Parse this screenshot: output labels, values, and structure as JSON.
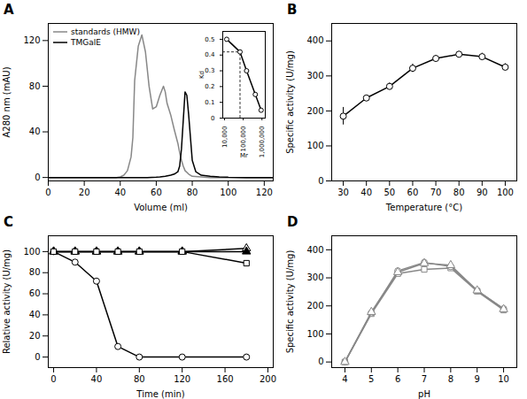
{
  "chart_data": [
    {
      "type": "line",
      "title": "A",
      "xlabel": "Volume (ml)",
      "ylabel": "A280 nm (mAU)",
      "xlim": [
        0,
        125
      ],
      "ylim": [
        -3,
        135
      ],
      "xticks": [
        0,
        20,
        40,
        60,
        80,
        100,
        120
      ],
      "yticks": [
        0,
        40,
        80,
        120
      ],
      "grid": false,
      "legend": "upper left",
      "series": [
        {
          "name": "standards (HMW)",
          "color": "#888888",
          "x": [
            0,
            38,
            40,
            42,
            44,
            46,
            47,
            48,
            50,
            52,
            54,
            56,
            58,
            60,
            62,
            64,
            65,
            66,
            68,
            70,
            72,
            73,
            74,
            75,
            76,
            78,
            80,
            85,
            90,
            100,
            110,
            125
          ],
          "values": [
            0,
            0,
            0.5,
            2,
            6,
            18,
            35,
            85,
            115,
            125,
            110,
            80,
            60,
            62,
            72,
            80,
            75,
            65,
            55,
            42,
            30,
            22,
            15,
            10,
            6,
            3,
            1,
            0.5,
            0,
            0,
            0,
            0
          ]
        },
        {
          "name": "TMGalE",
          "color": "#000000",
          "x": [
            0,
            55,
            60,
            62,
            65,
            68,
            70,
            72,
            73,
            74,
            75,
            76,
            77,
            78,
            79,
            80,
            82,
            85,
            90,
            95,
            100,
            110,
            120,
            125
          ],
          "values": [
            0,
            0,
            0.3,
            0.5,
            1,
            2,
            3,
            5,
            10,
            25,
            50,
            75,
            72,
            55,
            35,
            15,
            5,
            2,
            1,
            0.5,
            0.2,
            0,
            0,
            0
          ]
        }
      ],
      "inset": {
        "type": "line",
        "xlabel": "Mr",
        "ylabel": "Kd",
        "log": "x",
        "xlim": [
          8000,
          1500000
        ],
        "ylim": [
          0,
          0.55
        ],
        "xticks": [
          {
            "value": 10000,
            "label": "10,000"
          },
          {
            "value": 100000,
            "label": "100,000"
          },
          {
            "value": 1000000,
            "label": "1,000,000"
          }
        ],
        "yticks": [
          0,
          0.1,
          0.2,
          0.3,
          0.4,
          0.5
        ],
        "grid": false,
        "x": [
          13000,
          67000,
          150000,
          440000,
          900000
        ],
        "series": [
          {
            "color": "#000000",
            "marker": "open_circle",
            "values": [
              0.5,
              0.42,
              0.3,
              0.15,
              0.05
            ]
          }
        ],
        "crosshair": {
          "x": 67000,
          "y": 0.42
        }
      }
    },
    {
      "type": "line",
      "title": "B",
      "xlabel": "Temperature (°C)",
      "ylabel": "Specific activity (U/mg)",
      "xlim": [
        25,
        105
      ],
      "ylim": [
        0,
        450
      ],
      "xticks": [
        30,
        40,
        50,
        60,
        70,
        80,
        90,
        100
      ],
      "yticks": [
        0,
        100,
        200,
        300,
        400
      ],
      "grid": false,
      "x": [
        30,
        40,
        50,
        60,
        70,
        80,
        90,
        100
      ],
      "series": [
        {
          "color": "#000000",
          "marker": "open_circle",
          "values": [
            185,
            237,
            270,
            322,
            350,
            362,
            355,
            325
          ],
          "errors": [
            25,
            8,
            10,
            12,
            8,
            8,
            10,
            10
          ]
        }
      ]
    },
    {
      "type": "line",
      "title": "C",
      "xlabel": "Time (min)",
      "ylabel": "Relative activity (U/mg)",
      "xlim": [
        -5,
        205
      ],
      "ylim": [
        -10,
        115
      ],
      "xticks": [
        0,
        40,
        80,
        120,
        160,
        200
      ],
      "yticks": [
        0,
        20,
        40,
        60,
        80,
        100
      ],
      "grid": false,
      "x": [
        0,
        20,
        40,
        60,
        80,
        120,
        180
      ],
      "series": [
        {
          "color": "#000000",
          "marker": "open_circle",
          "values": [
            100,
            90,
            72,
            10,
            0,
            0,
            0
          ]
        },
        {
          "color": "#000000",
          "marker": "open_triangle",
          "values": [
            100,
            100,
            100,
            100,
            100,
            100,
            103
          ]
        },
        {
          "color": "#000000",
          "marker": "filled_triangle",
          "values": [
            100,
            100,
            100,
            100,
            100,
            100,
            100
          ]
        },
        {
          "color": "#000000",
          "marker": "open_square",
          "values": [
            100,
            100,
            100,
            100,
            100,
            100,
            89
          ]
        }
      ]
    },
    {
      "type": "line",
      "title": "D",
      "xlabel": "pH",
      "ylabel": "Specific activity (U/mg)",
      "xlim": [
        3.5,
        10.5
      ],
      "ylim": [
        -20,
        450
      ],
      "xticks": [
        4,
        5,
        6,
        7,
        8,
        9,
        10
      ],
      "yticks": [
        0,
        100,
        200,
        300,
        400
      ],
      "grid": false,
      "x": [
        4,
        5,
        6,
        7,
        8,
        9,
        10
      ],
      "series": [
        {
          "color": "#888888",
          "marker": "open_square",
          "values": [
            0,
            172,
            315,
            330,
            335,
            252,
            185
          ]
        },
        {
          "color": "#888888",
          "marker": "open_circle",
          "values": [
            0,
            175,
            325,
            355,
            340,
            255,
            190
          ]
        },
        {
          "color": "#888888",
          "marker": "open_triangle",
          "values": [
            0,
            178,
            320,
            352,
            345,
            255,
            188
          ]
        }
      ]
    }
  ]
}
